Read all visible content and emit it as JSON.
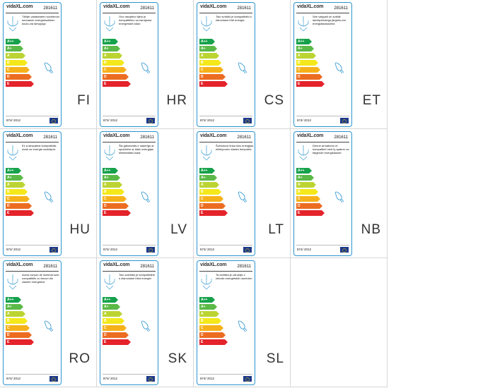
{
  "brand": "vidaXL.com",
  "model": "281611",
  "regulation": "874/ 2012",
  "classes": [
    {
      "label": "A++",
      "color": "#16a14a",
      "width": 18
    },
    {
      "label": "A+",
      "color": "#5bb947",
      "width": 21
    },
    {
      "label": "A",
      "color": "#bbd432",
      "width": 24
    },
    {
      "label": "B",
      "color": "#f4e81b",
      "width": 27
    },
    {
      "label": "C",
      "color": "#f6b11a",
      "width": 30
    },
    {
      "label": "D",
      "color": "#ec6c21",
      "width": 33
    },
    {
      "label": "E",
      "color": "#e4232b",
      "width": 36
    }
  ],
  "labels": [
    {
      "lang": "FI",
      "text": "Tähän valaisimeen soveltuvat seuraavin energialuokkien kuulu-via lamppuja:"
    },
    {
      "lang": "HR",
      "text": "Ovo rasvjetno tijelo je kompatibilno sa žaruljama energetskih klasi:"
    },
    {
      "lang": "CS",
      "text": "Toto svítidlo je kompatibilní s žárovkami třídi energie:"
    },
    {
      "lang": "ET",
      "text": "See valgusti on sobilik lambipirnidega järgmis-est energiaklassidest:"
    },
    {
      "lang": "HU",
      "text": "Ez a lámpatest kompatibilis izzók az energia osztályok:"
    },
    {
      "lang": "LV",
      "text": "Šis gaismeklis ir saderīgs ar spuldzēm ar šādu energijas efektivitātes klasi:"
    },
    {
      "lang": "LT",
      "text": "Šviestuvui tinka šios energijas efektyvumo klasės lemputės:"
    },
    {
      "lang": "NB",
      "text": "Denne armaturen er kompatibel med ly-spærer av følgende energiklasser:"
    },
    {
      "lang": "RO",
      "text": "Acest corpuri de iluminat sunt compatibile cu becuri din clasele energetice:"
    },
    {
      "lang": "SK",
      "text": "Toto svietidlo je kompatibilné s žiarovkami tried energie:"
    },
    {
      "lang": "SL",
      "text": "Ta svetilka je združljiv z čebulic energetskih razredov:"
    }
  ]
}
